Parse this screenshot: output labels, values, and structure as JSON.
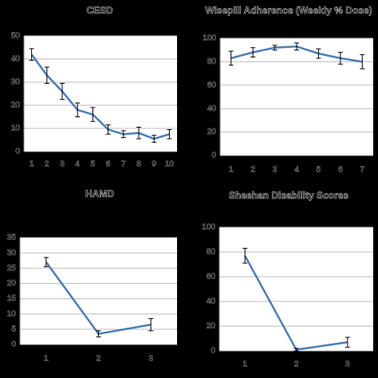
{
  "chart_data": [
    {
      "type": "line",
      "title": "CESD",
      "categories": [
        "1",
        "2",
        "3",
        "4",
        "5",
        "6",
        "7",
        "8",
        "9",
        "10"
      ],
      "series": [
        {
          "color": "#4a7ebb",
          "values": [
            42,
            33,
            26,
            18,
            16,
            9.5,
            7.5,
            8,
            5.5,
            7.5
          ],
          "errors": [
            2.5,
            3.5,
            3.5,
            3,
            3,
            2,
            1.5,
            2.5,
            1.5,
            2
          ]
        }
      ],
      "ylim": [
        0,
        50
      ],
      "yticks": [
        0,
        10,
        20,
        30,
        40,
        50
      ]
    },
    {
      "type": "line",
      "title": "Wisepill Adherence (Weekly % Dose)",
      "categories": [
        "1",
        "2",
        "3",
        "4",
        "5",
        "6",
        "7"
      ],
      "series": [
        {
          "color": "#4a7ebb",
          "values": [
            83,
            88,
            92,
            93,
            87,
            83,
            80
          ],
          "errors": [
            6,
            4,
            2,
            3,
            4,
            5,
            6
          ]
        }
      ],
      "ylim": [
        0,
        100
      ],
      "yticks": [
        0,
        20,
        40,
        60,
        80,
        100
      ]
    },
    {
      "type": "line",
      "title": "HAMD",
      "categories": [
        "1",
        "2",
        "3"
      ],
      "series": [
        {
          "color": "#4a7ebb",
          "values": [
            27,
            3.5,
            6.5
          ],
          "errors": [
            1.5,
            1,
            2
          ]
        }
      ],
      "ylim": [
        0,
        35
      ],
      "yticks": [
        0,
        5,
        10,
        15,
        20,
        25,
        30,
        35
      ]
    },
    {
      "type": "line",
      "title": "Sheehan Disability Scores",
      "categories": [
        "1",
        "2",
        "3"
      ],
      "series": [
        {
          "color": "#4a7ebb",
          "values": [
            77,
            1,
            7
          ],
          "errors": [
            6,
            1,
            4
          ]
        }
      ],
      "ylim": [
        0,
        100
      ],
      "yticks": [
        0,
        20,
        40,
        60,
        80,
        100
      ]
    }
  ]
}
